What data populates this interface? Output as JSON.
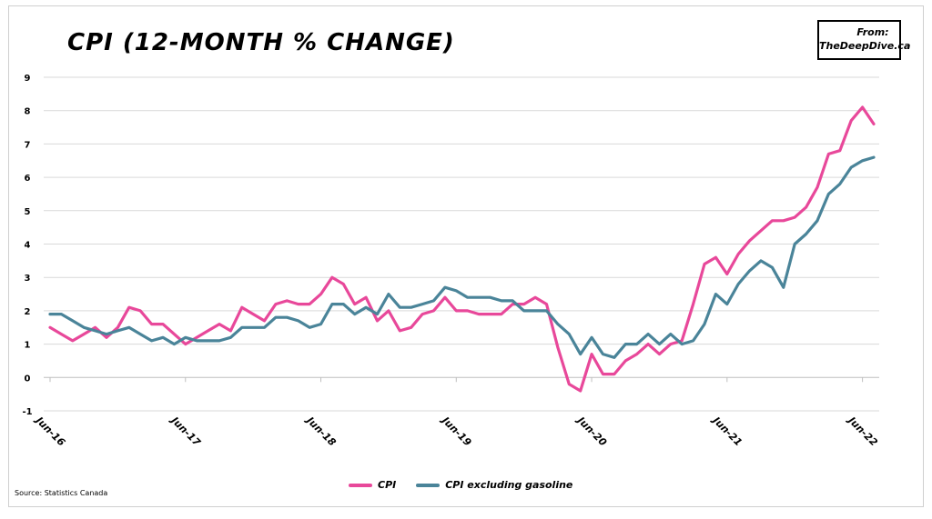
{
  "header": {
    "title": "CPI (12-MONTH % CHANGE)"
  },
  "badge": {
    "line1": "From:",
    "line2": "TheDeepDive.ca"
  },
  "footer": {
    "source": "Source: Statistics Canada"
  },
  "colors": {
    "cpi": "#e8489a",
    "core": "#4a8499",
    "grid": "#d9d9d9",
    "axis": "#bfbfbf"
  },
  "chart_data": {
    "type": "line",
    "title": "CPI (12-MONTH % CHANGE)",
    "xlabel": "",
    "ylabel": "",
    "ylim": [
      -1,
      9
    ],
    "yticks": [
      -1,
      0,
      1,
      2,
      3,
      4,
      5,
      6,
      7,
      8,
      9
    ],
    "legend": "bottom-center",
    "grid": true,
    "x_start": "2016-06",
    "x_end": "2022-06",
    "xtick_labels": [
      "Jun-16",
      "Jun-17",
      "Jun-18",
      "Jun-19",
      "Jun-20",
      "Jun-21",
      "Jun-22"
    ],
    "series": [
      {
        "name": "CPI",
        "color": "#e8489a",
        "values": [
          1.5,
          1.3,
          1.1,
          1.3,
          1.5,
          1.2,
          1.5,
          2.1,
          2.0,
          1.6,
          1.6,
          1.3,
          1.0,
          1.2,
          1.4,
          1.6,
          1.4,
          2.1,
          1.9,
          1.7,
          2.2,
          2.3,
          2.2,
          2.2,
          2.5,
          3.0,
          2.8,
          2.2,
          2.4,
          1.7,
          2.0,
          1.4,
          1.5,
          1.9,
          2.0,
          2.4,
          2.0,
          2.0,
          1.9,
          1.9,
          1.9,
          2.2,
          2.2,
          2.4,
          2.2,
          0.9,
          -0.2,
          -0.4,
          0.7,
          0.1,
          0.1,
          0.5,
          0.7,
          1.0,
          0.7,
          1.0,
          1.1,
          2.2,
          3.4,
          3.6,
          3.1,
          3.7,
          4.1,
          4.4,
          4.7,
          4.7,
          4.8,
          5.1,
          5.7,
          6.7,
          6.8,
          7.7,
          8.1,
          7.6
        ]
      },
      {
        "name": "CPI excluding gasoline",
        "color": "#4a8499",
        "values": [
          1.9,
          1.9,
          1.7,
          1.5,
          1.4,
          1.3,
          1.4,
          1.5,
          1.3,
          1.1,
          1.2,
          1.0,
          1.2,
          1.1,
          1.1,
          1.1,
          1.2,
          1.5,
          1.5,
          1.5,
          1.8,
          1.8,
          1.7,
          1.5,
          1.6,
          2.2,
          2.2,
          1.9,
          2.1,
          1.9,
          2.5,
          2.1,
          2.1,
          2.2,
          2.3,
          2.7,
          2.6,
          2.4,
          2.4,
          2.4,
          2.3,
          2.3,
          2.0,
          2.0,
          2.0,
          1.6,
          1.3,
          0.7,
          1.2,
          0.7,
          0.6,
          1.0,
          1.0,
          1.3,
          1.0,
          1.3,
          1.0,
          1.1,
          1.6,
          2.5,
          2.2,
          2.8,
          3.2,
          3.5,
          3.3,
          2.7,
          4.0,
          4.3,
          4.7,
          5.5,
          5.8,
          6.3,
          6.5,
          6.6
        ]
      }
    ]
  }
}
